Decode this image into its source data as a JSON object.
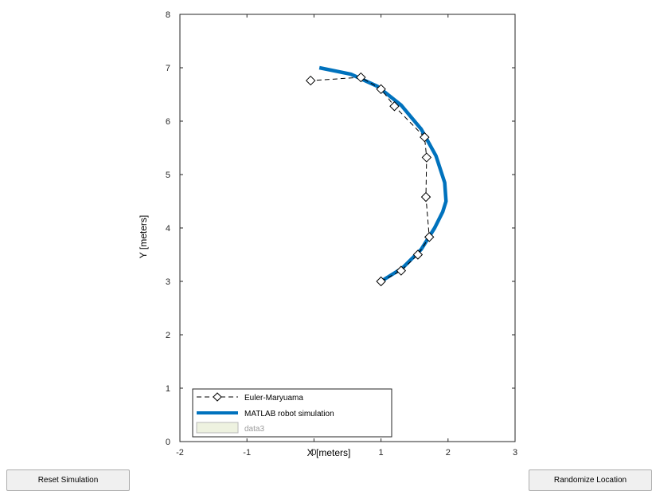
{
  "buttons": {
    "reset_label": "Reset Simulation",
    "randomize_label": "Randomize Location"
  },
  "chart_data": {
    "type": "line",
    "xlabel": "X [meters]",
    "ylabel": "Y [meters]",
    "xlim": [
      -2,
      3
    ],
    "ylim": [
      0,
      8
    ],
    "xticks": [
      -2,
      -1,
      0,
      1,
      2,
      3
    ],
    "yticks": [
      0,
      1,
      2,
      3,
      4,
      5,
      6,
      7,
      8
    ],
    "grid": false,
    "legend_position": "bottom-left",
    "series": [
      {
        "name": "Euler-Maryuama",
        "style": "dashed-diamond",
        "color": "#000000",
        "x": [
          1.0,
          1.3,
          1.55,
          1.72,
          1.67,
          1.68,
          1.65,
          1.2,
          1.0,
          0.7,
          -0.05
        ],
        "y": [
          3.0,
          3.2,
          3.5,
          3.83,
          4.58,
          5.32,
          5.7,
          6.28,
          6.6,
          6.82,
          6.76
        ]
      },
      {
        "name": "MATLAB robot simulation",
        "style": "solid-thick",
        "color": "#0072bd",
        "x": [
          1.0,
          1.32,
          1.6,
          1.8,
          1.92,
          1.97,
          1.95,
          1.82,
          1.6,
          1.3,
          0.95,
          0.55,
          0.08
        ],
        "y": [
          3.0,
          3.25,
          3.6,
          4.0,
          4.3,
          4.5,
          4.85,
          5.35,
          5.85,
          6.3,
          6.65,
          6.88,
          7.0
        ]
      },
      {
        "name": "data3",
        "style": "patch",
        "color": "#eef2e0",
        "x": [],
        "y": []
      }
    ]
  }
}
